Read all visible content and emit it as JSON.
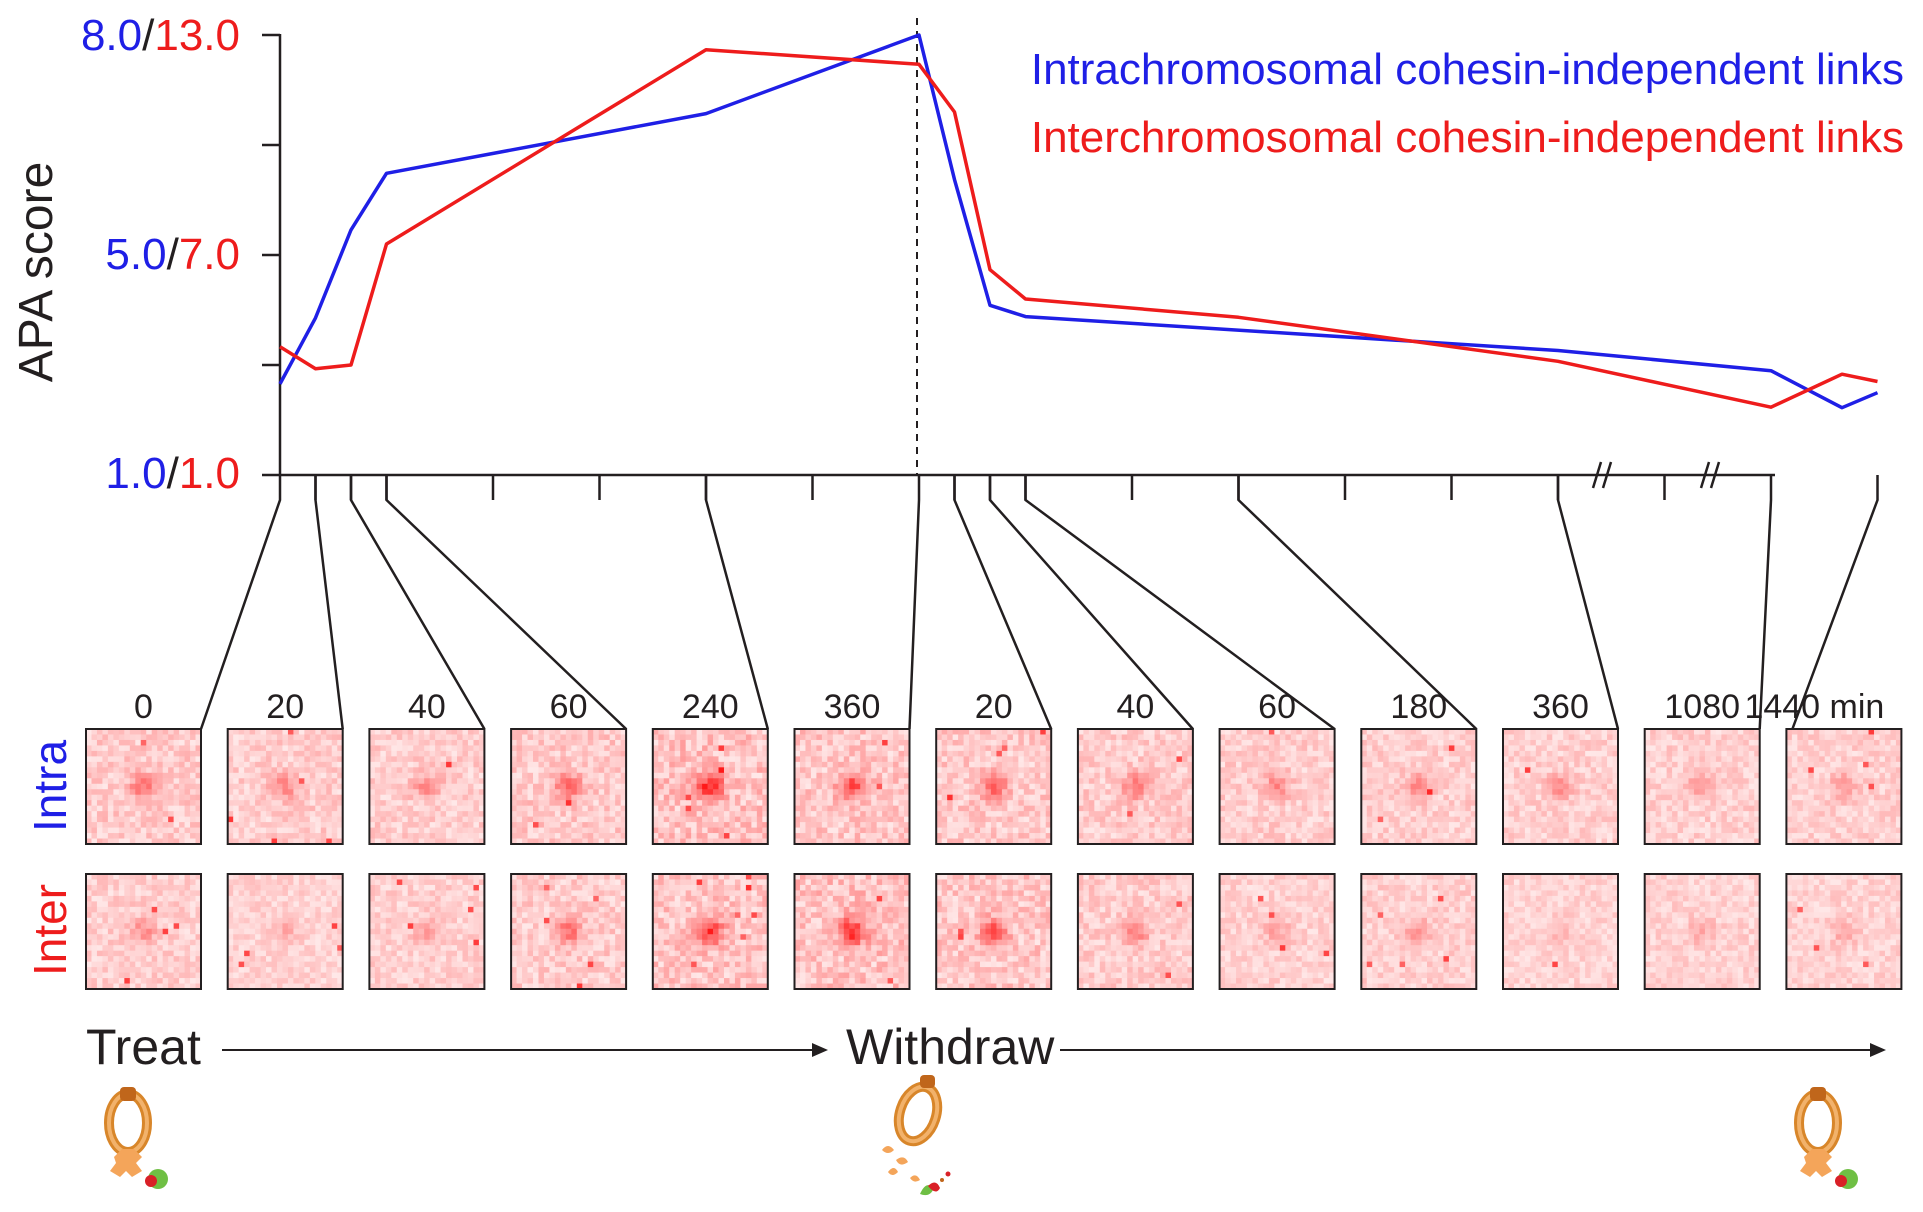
{
  "chart_data": {
    "type": "line",
    "ylabel": "APA score",
    "y_ticks": [
      {
        "intra": "8.0",
        "inter": "13.0"
      },
      {
        "intra": "5.0",
        "inter": "7.0"
      },
      {
        "intra": "1.0",
        "inter": "1.0"
      }
    ],
    "ylim_intra": [
      1.0,
      8.0
    ],
    "ylim_inter": [
      1.0,
      13.0
    ],
    "x_tick_labels": [
      "0",
      "20",
      "40",
      "60",
      "240",
      "360",
      "20",
      "40",
      "60",
      "180",
      "360",
      "1080",
      "1440 min"
    ],
    "phase_labels": {
      "treat": "Treat",
      "withdraw": "Withdraw"
    },
    "row_labels": {
      "intra": "Intra",
      "inter": "Inter"
    },
    "series": [
      {
        "name": "Intrachromosomal cohesin-independent links",
        "color": "#1f1fe6",
        "x": [
          0,
          1,
          2,
          3,
          12,
          18,
          19,
          20,
          21,
          36,
          42,
          44,
          45
        ],
        "values": [
          2.45,
          3.5,
          4.9,
          5.8,
          6.75,
          8.0,
          5.7,
          3.7,
          3.52,
          2.98,
          2.66,
          2.07,
          2.31
        ]
      },
      {
        "name": "Interchromosomal cohesin-independent links",
        "color": "#ee1c1c",
        "x": [
          0,
          1,
          2,
          3,
          12,
          18,
          19,
          20,
          21,
          27,
          36,
          42,
          44,
          45
        ],
        "values": [
          4.5,
          3.9,
          4.0,
          7.3,
          12.6,
          12.2,
          10.9,
          6.6,
          5.8,
          5.3,
          4.1,
          2.85,
          3.75,
          3.55
        ]
      }
    ],
    "intra_intensity": [
      0.45,
      0.38,
      0.36,
      0.5,
      0.78,
      0.62,
      0.52,
      0.42,
      0.35,
      0.32,
      0.3,
      0.3,
      0.28
    ],
    "inter_intensity": [
      0.32,
      0.18,
      0.28,
      0.45,
      0.68,
      0.8,
      0.6,
      0.4,
      0.22,
      0.28,
      0.15,
      0.2,
      0.2
    ]
  },
  "colors": {
    "intra": "#1f1fe6",
    "inter": "#ee1c1c",
    "axis": "#231f20"
  },
  "icons": [
    "cohesin-ring-icon",
    "degraded-cohesin-icon",
    "cohesin-ring-icon"
  ]
}
